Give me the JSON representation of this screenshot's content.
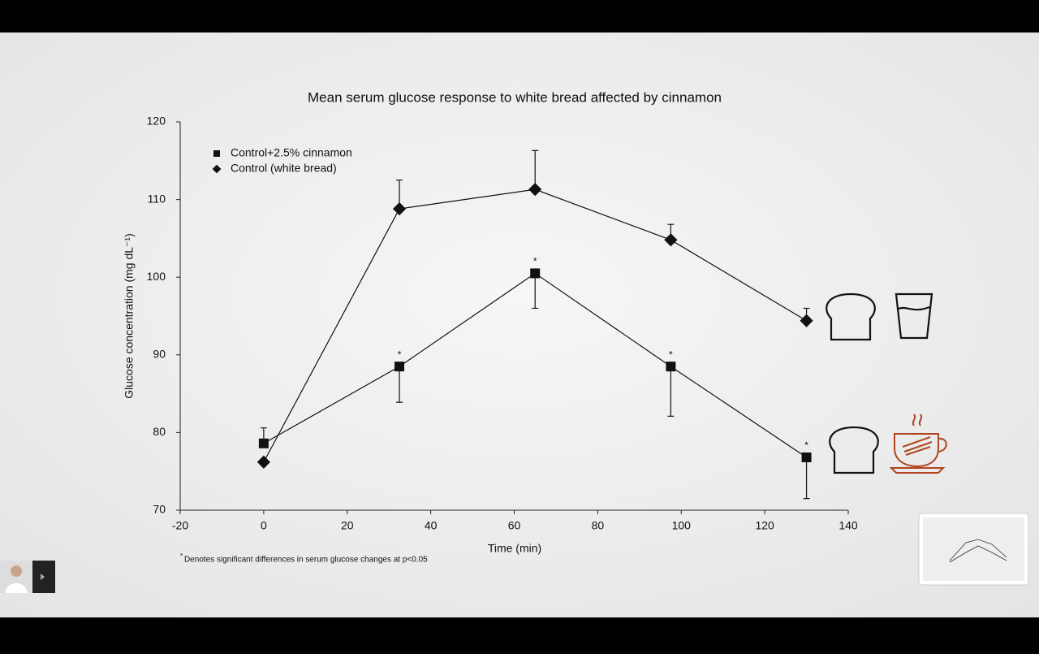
{
  "chart_data": {
    "type": "line",
    "title": "Mean serum glucose response to white bread affected by cinnamon",
    "x_label": "Time (min)",
    "y_label": "Glucose concentration (mg dL⁻¹)",
    "x": [
      0,
      32.5,
      65,
      97.5,
      130
    ],
    "series": [
      {
        "name": "Control+2.5% cinnamon",
        "color": "#111111",
        "marker": "square",
        "values": [
          78.6,
          88.5,
          100.5,
          88.5,
          76.8
        ],
        "errors": [
          2,
          4.6,
          4.5,
          6.4,
          5.3
        ],
        "error_direction": "down-after-first",
        "significance": [
          null,
          "*",
          "*",
          "*",
          "*"
        ]
      },
      {
        "name": "Control (white bread)",
        "color": "#111111",
        "marker": "diamond",
        "values": [
          76.2,
          108.8,
          111.3,
          104.8,
          94.4
        ],
        "errors": [
          null,
          3.7,
          5,
          2,
          1.6
        ],
        "error_direction": "up"
      }
    ],
    "xlim": [
      -20,
      140
    ],
    "xticks": [
      -20,
      0,
      20,
      40,
      60,
      80,
      100,
      120,
      140
    ],
    "ylim": [
      70,
      120
    ],
    "yticks": [
      70,
      80,
      90,
      100,
      110,
      120
    ],
    "legend": "top-left",
    "footnote_marker": "*",
    "footnote": "Denotes significant differences in serum glucose changes at p<0.05"
  }
}
